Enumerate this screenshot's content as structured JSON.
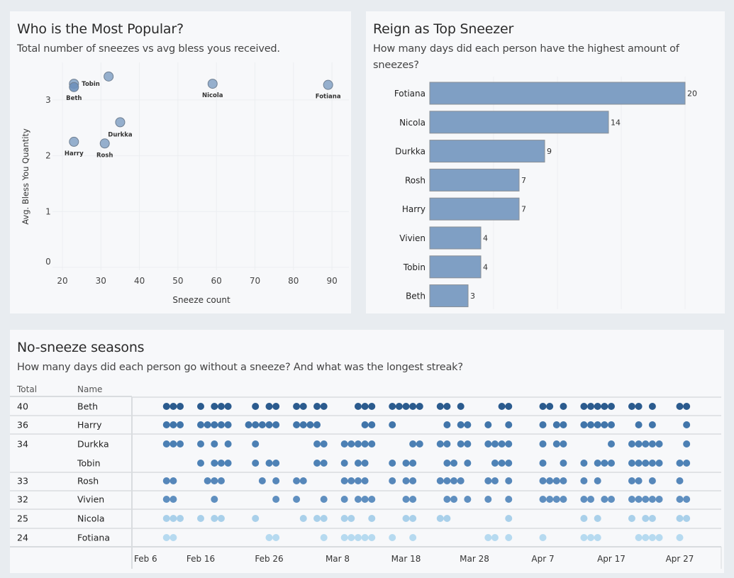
{
  "scatter": {
    "title": "Who is the Most Popular?",
    "subtitle": "Total number of sneezes vs avg bless yous received.",
    "chart_data": {
      "type": "scatter",
      "xlabel": "Sneeze count",
      "ylabel": "Avg. Bless You Quantity",
      "xlim": [
        18,
        95
      ],
      "ylim": [
        0,
        3.6
      ],
      "xticks": [
        20,
        30,
        40,
        50,
        60,
        70,
        80,
        90
      ],
      "yticks": [
        0,
        1,
        2,
        3
      ],
      "grid": true,
      "points": [
        {
          "name": "Tobin",
          "label": "Tobin",
          "x": 23,
          "y": 3.29
        },
        {
          "name": "Beth",
          "label": "Beth",
          "x": 23,
          "y": 3.23
        },
        {
          "name": "Vivien",
          "label": "",
          "x": 32,
          "y": 3.42
        },
        {
          "name": "Durkka",
          "label": "Durkka",
          "x": 35,
          "y": 2.6
        },
        {
          "name": "Harry",
          "label": "Harry",
          "x": 23,
          "y": 2.25
        },
        {
          "name": "Rosh",
          "label": "Rosh",
          "x": 31,
          "y": 2.22
        },
        {
          "name": "Nicola",
          "label": "Nicola",
          "x": 59,
          "y": 3.29
        },
        {
          "name": "Fotiana",
          "label": "Fotiana",
          "x": 89,
          "y": 3.27
        }
      ],
      "point_color": "#8aa6c8"
    }
  },
  "bars": {
    "title": "Reign as Top Sneezer",
    "subtitle": "How many days did each person have the highest amount of sneezes?",
    "chart_data": {
      "type": "bar",
      "orientation": "horizontal",
      "categories": [
        "Fotiana",
        "Nicola",
        "Durkka",
        "Rosh",
        "Harry",
        "Vivien",
        "Tobin",
        "Beth"
      ],
      "values": [
        20,
        14,
        9,
        7,
        7,
        4,
        4,
        3
      ],
      "xlim": [
        0,
        21
      ],
      "grid_values": [
        5,
        10,
        15,
        20
      ],
      "bar_color": "#7f9fc4"
    }
  },
  "strip": {
    "title": "No-sneeze seasons",
    "subtitle": "How many days did each person go without a sneeze? And what was the longest streak?",
    "col_total": "Total",
    "col_name": "Name",
    "chart_data": {
      "type": "scatter",
      "description": "Each dot = one day with no sneeze; day index counted from Feb 6",
      "start_date": "Feb 6",
      "xticks": [
        "Feb 6",
        "Feb 16",
        "Feb 26",
        "Mar 8",
        "Mar 18",
        "Mar 28",
        "Apr 7",
        "Apr 17",
        "Apr 27"
      ],
      "xtick_days": [
        0,
        10,
        20,
        30,
        40,
        50,
        60,
        70,
        80
      ],
      "rows": [
        {
          "name": "Beth",
          "total": "40",
          "color": "#2b5b8e",
          "days": [
            5,
            6,
            7,
            10,
            12,
            13,
            14,
            18,
            20,
            21,
            24,
            25,
            27,
            28,
            33,
            34,
            35,
            38,
            39,
            40,
            41,
            42,
            45,
            46,
            48,
            54,
            55,
            60,
            61,
            63,
            66,
            67,
            68,
            69,
            70,
            73,
            74,
            76,
            80,
            81
          ]
        },
        {
          "name": "Harry",
          "total": "36",
          "color": "#4175aa",
          "days": [
            5,
            6,
            7,
            10,
            11,
            12,
            13,
            14,
            17,
            18,
            19,
            20,
            21,
            24,
            25,
            26,
            27,
            34,
            35,
            38,
            46,
            48,
            49,
            52,
            55,
            60,
            62,
            63,
            66,
            67,
            68,
            69,
            70,
            74,
            76,
            81
          ]
        },
        {
          "name": "Durkka",
          "total": "34",
          "color": "#4c80b4",
          "days": [
            5,
            6,
            7,
            10,
            12,
            14,
            18,
            27,
            28,
            31,
            32,
            33,
            34,
            35,
            41,
            42,
            45,
            46,
            48,
            49,
            52,
            53,
            54,
            55,
            60,
            62,
            63,
            70,
            73,
            74,
            75,
            76,
            77,
            81
          ]
        },
        {
          "name": "Tobin",
          "total": "",
          "color": "#4e82b6",
          "days": [
            10,
            12,
            13,
            14,
            18,
            20,
            21,
            27,
            28,
            31,
            33,
            34,
            38,
            40,
            41,
            46,
            47,
            49,
            53,
            54,
            55,
            60,
            63,
            66,
            68,
            69,
            70,
            73,
            74,
            75,
            76,
            77,
            80,
            81
          ]
        },
        {
          "name": "Rosh",
          "total": "33",
          "color": "#5687ba",
          "days": [
            5,
            6,
            11,
            12,
            13,
            19,
            21,
            24,
            25,
            31,
            32,
            33,
            34,
            38,
            40,
            41,
            45,
            46,
            47,
            48,
            52,
            53,
            55,
            60,
            61,
            62,
            63,
            66,
            68,
            73,
            74,
            76,
            80
          ]
        },
        {
          "name": "Vivien",
          "total": "32",
          "color": "#5f8fc0",
          "days": [
            5,
            6,
            12,
            21,
            24,
            28,
            31,
            33,
            34,
            35,
            40,
            41,
            46,
            47,
            49,
            52,
            55,
            60,
            61,
            62,
            63,
            66,
            67,
            69,
            70,
            73,
            74,
            75,
            76,
            77,
            80,
            81
          ]
        },
        {
          "name": "Nicola",
          "total": "25",
          "color": "#a9d0ea",
          "days": [
            5,
            6,
            7,
            10,
            12,
            13,
            18,
            25,
            27,
            28,
            31,
            32,
            35,
            40,
            41,
            45,
            46,
            55,
            66,
            68,
            73,
            75,
            76,
            80,
            81
          ]
        },
        {
          "name": "Fotiana",
          "total": "24",
          "color": "#b6daf0",
          "days": [
            5,
            6,
            20,
            21,
            28,
            31,
            32,
            33,
            34,
            35,
            38,
            41,
            52,
            53,
            55,
            60,
            66,
            67,
            68,
            74,
            75,
            76,
            77,
            80
          ]
        }
      ]
    }
  }
}
